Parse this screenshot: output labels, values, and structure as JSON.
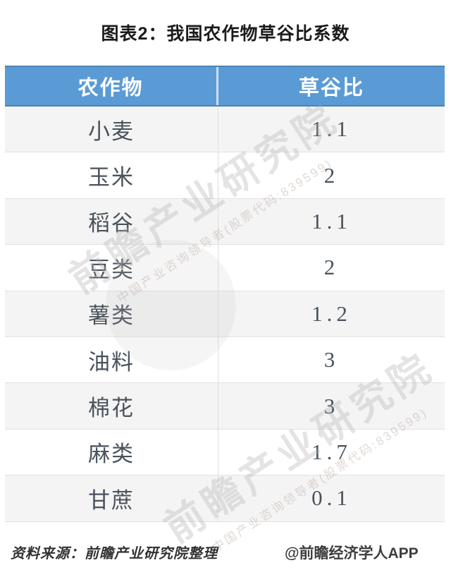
{
  "title": "图表2：我国农作物草谷比系数",
  "table": {
    "headers": [
      "农作物",
      "草谷比"
    ],
    "rows": [
      {
        "crop": "小麦",
        "ratio": "1.1"
      },
      {
        "crop": "玉米",
        "ratio": "2"
      },
      {
        "crop": "稻谷",
        "ratio": "1.1"
      },
      {
        "crop": "豆类",
        "ratio": "2"
      },
      {
        "crop": "薯类",
        "ratio": "1.2"
      },
      {
        "crop": "油料",
        "ratio": "3"
      },
      {
        "crop": "棉花",
        "ratio": "3"
      },
      {
        "crop": "麻类",
        "ratio": "1.7"
      },
      {
        "crop": "甘蔗",
        "ratio": "0.1"
      }
    ]
  },
  "chart_data": {
    "type": "table",
    "title": "图表2：我国农作物草谷比系数",
    "columns": [
      "农作物",
      "草谷比"
    ],
    "categories": [
      "小麦",
      "玉米",
      "稻谷",
      "豆类",
      "薯类",
      "油料",
      "棉花",
      "麻类",
      "甘蔗"
    ],
    "values": [
      1.1,
      2,
      1.1,
      2,
      1.2,
      3,
      3,
      1.7,
      0.1
    ]
  },
  "footer": {
    "source": "资料来源：前瞻产业研究院整理",
    "credit": "@前瞻经济学人APP"
  },
  "watermark": {
    "main": "前瞻产业研究院",
    "sub": "中国产业咨询领导者(股票代码:839599)"
  },
  "colors": {
    "header_bg": "#5B9BD5",
    "header_text": "#FFFFFF",
    "row_alt_bg": "#F4F4F4",
    "row_bg": "#FFFFFF",
    "cell_text": "#4A525C",
    "border": "#E2E2E2",
    "title_text": "#1B1B1B"
  }
}
